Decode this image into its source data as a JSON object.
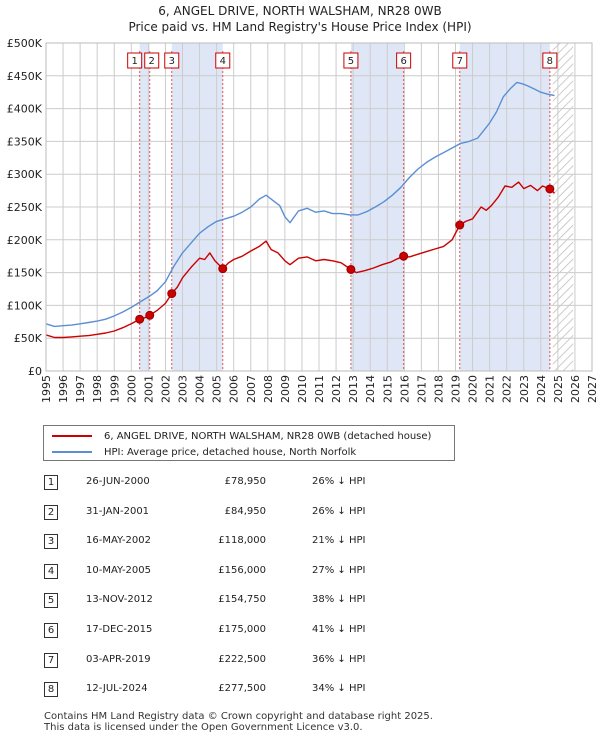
{
  "header": {
    "title": "6, ANGEL DRIVE, NORTH WALSHAM, NR28 0WB",
    "subtitle": "Price paid vs. HM Land Registry's House Price Index (HPI)"
  },
  "colors": {
    "red": "#cc0000",
    "blue": "#5b8fd4",
    "band": "#dfe7f7",
    "grid": "#cccccc"
  },
  "chart_data": {
    "type": "line",
    "title": "6, ANGEL DRIVE, NORTH WALSHAM, NR28 0WB",
    "xlim": [
      1995,
      2027
    ],
    "ylim": [
      0,
      500000
    ],
    "x_ticks": [
      1995,
      1996,
      1997,
      1998,
      1999,
      2000,
      2001,
      2002,
      2003,
      2004,
      2005,
      2006,
      2007,
      2008,
      2009,
      2010,
      2011,
      2012,
      2013,
      2014,
      2015,
      2016,
      2017,
      2018,
      2019,
      2020,
      2021,
      2022,
      2023,
      2024,
      2025,
      2026,
      2027
    ],
    "x_tick_labels": [
      "1995",
      "1996",
      "1997",
      "1998",
      "1999",
      "2000",
      "2001",
      "2002",
      "2003",
      "2004",
      "2005",
      "2006",
      "2007",
      "2008",
      "2009",
      "2010",
      "2011",
      "2012",
      "2013",
      "2014",
      "2015",
      "2016",
      "2017",
      "2018",
      "2019",
      "2020",
      "2021",
      "2022",
      "2023",
      "2024",
      "2025",
      "2026",
      "2027"
    ],
    "y_ticks": [
      0,
      50000,
      100000,
      150000,
      200000,
      250000,
      300000,
      350000,
      400000,
      450000,
      500000
    ],
    "y_tick_labels": [
      "£0",
      "£50K",
      "£100K",
      "£150K",
      "£200K",
      "£250K",
      "£300K",
      "£350K",
      "£400K",
      "£450K",
      "£500K"
    ],
    "forecast_start": 2024.7,
    "series": [
      {
        "name": "6, ANGEL DRIVE, NORTH WALSHAM, NR28 0WB (detached house)",
        "color": "#cc0000",
        "x": [
          1995.0,
          1995.5,
          1996.0,
          1996.5,
          1997.0,
          1997.5,
          1998.0,
          1998.5,
          1999.0,
          1999.5,
          2000.0,
          2000.49,
          2000.7,
          2001.08,
          2001.5,
          2002.0,
          2002.37,
          2002.7,
          2003.0,
          2003.5,
          2004.0,
          2004.3,
          2004.6,
          2004.9,
          2005.36,
          2005.7,
          2006.0,
          2006.5,
          2007.0,
          2007.5,
          2007.9,
          2008.2,
          2008.6,
          2009.0,
          2009.3,
          2009.8,
          2010.3,
          2010.8,
          2011.3,
          2011.8,
          2012.3,
          2012.87,
          2013.2,
          2013.7,
          2014.2,
          2014.7,
          2015.2,
          2015.6,
          2015.96,
          2016.3,
          2016.8,
          2017.3,
          2017.8,
          2018.3,
          2018.8,
          2019.25,
          2019.6,
          2020.0,
          2020.5,
          2020.8,
          2021.1,
          2021.5,
          2021.9,
          2022.3,
          2022.7,
          2023.0,
          2023.4,
          2023.8,
          2024.1,
          2024.53,
          2024.8
        ],
        "values": [
          55000,
          51000,
          51000,
          52000,
          53000,
          54000,
          56000,
          58000,
          61000,
          66000,
          72000,
          78950,
          80000,
          84950,
          92000,
          103000,
          118000,
          128000,
          142000,
          158000,
          172000,
          170000,
          180000,
          168000,
          156000,
          165000,
          170000,
          175000,
          183000,
          190000,
          198000,
          185000,
          180000,
          168000,
          162000,
          172000,
          174000,
          168000,
          170000,
          168000,
          165000,
          154750,
          150000,
          153000,
          157000,
          162000,
          166000,
          171000,
          175000,
          174000,
          178000,
          182000,
          186000,
          190000,
          200000,
          222500,
          228000,
          232000,
          250000,
          245000,
          252000,
          265000,
          282000,
          280000,
          288000,
          278000,
          283000,
          275000,
          282000,
          277500,
          271000
        ]
      },
      {
        "name": "HPI: Average price, detached house, North Norfolk",
        "color": "#5b8fd4",
        "x": [
          1995.0,
          1995.5,
          1996.0,
          1996.5,
          1997.0,
          1997.5,
          1998.0,
          1998.5,
          1999.0,
          1999.5,
          2000.0,
          2000.5,
          2001.0,
          2001.5,
          2002.0,
          2002.5,
          2003.0,
          2003.5,
          2004.0,
          2004.5,
          2005.0,
          2005.5,
          2006.0,
          2006.5,
          2007.0,
          2007.5,
          2007.9,
          2008.3,
          2008.7,
          2009.0,
          2009.3,
          2009.8,
          2010.3,
          2010.8,
          2011.3,
          2011.8,
          2012.3,
          2012.8,
          2013.3,
          2013.8,
          2014.3,
          2014.8,
          2015.3,
          2015.8,
          2016.3,
          2016.8,
          2017.3,
          2017.8,
          2018.3,
          2018.8,
          2019.3,
          2019.8,
          2020.3,
          2020.7,
          2021.0,
          2021.4,
          2021.8,
          2022.2,
          2022.6,
          2022.9,
          2023.2,
          2023.6,
          2024.0,
          2024.4,
          2024.8
        ],
        "values": [
          72000,
          68000,
          69000,
          70000,
          72000,
          74000,
          76000,
          79000,
          84000,
          90000,
          97000,
          105000,
          113000,
          122000,
          136000,
          160000,
          180000,
          195000,
          210000,
          220000,
          228000,
          232000,
          236000,
          242000,
          250000,
          262000,
          268000,
          260000,
          252000,
          235000,
          226000,
          244000,
          248000,
          242000,
          244000,
          240000,
          240000,
          238000,
          238000,
          243000,
          250000,
          258000,
          268000,
          280000,
          295000,
          308000,
          318000,
          326000,
          333000,
          340000,
          347000,
          350000,
          355000,
          368000,
          378000,
          395000,
          418000,
          430000,
          440000,
          438000,
          435000,
          430000,
          425000,
          422000,
          420000
        ]
      }
    ],
    "sales": [
      {
        "n": "1",
        "x": 2000.49,
        "y": 78950
      },
      {
        "n": "2",
        "x": 2001.08,
        "y": 84950
      },
      {
        "n": "3",
        "x": 2002.37,
        "y": 118000
      },
      {
        "n": "4",
        "x": 2005.36,
        "y": 156000
      },
      {
        "n": "5",
        "x": 2012.87,
        "y": 154750
      },
      {
        "n": "6",
        "x": 2015.96,
        "y": 175000
      },
      {
        "n": "7",
        "x": 2019.25,
        "y": 222500
      },
      {
        "n": "8",
        "x": 2024.53,
        "y": 277500
      }
    ],
    "bands": [
      [
        2000.49,
        2001.08
      ],
      [
        2002.37,
        2005.36
      ],
      [
        2012.87,
        2015.96
      ],
      [
        2019.25,
        2024.53
      ]
    ]
  },
  "legend": {
    "red_label": "6, ANGEL DRIVE, NORTH WALSHAM, NR28 0WB (detached house)",
    "blue_label": "HPI: Average price, detached house, North Norfolk"
  },
  "transactions": [
    {
      "n": "1",
      "date": "26-JUN-2000",
      "price": "£78,950",
      "hpi": "26% ↓ HPI"
    },
    {
      "n": "2",
      "date": "31-JAN-2001",
      "price": "£84,950",
      "hpi": "26% ↓ HPI"
    },
    {
      "n": "3",
      "date": "16-MAY-2002",
      "price": "£118,000",
      "hpi": "21% ↓ HPI"
    },
    {
      "n": "4",
      "date": "10-MAY-2005",
      "price": "£156,000",
      "hpi": "27% ↓ HPI"
    },
    {
      "n": "5",
      "date": "13-NOV-2012",
      "price": "£154,750",
      "hpi": "38% ↓ HPI"
    },
    {
      "n": "6",
      "date": "17-DEC-2015",
      "price": "£175,000",
      "hpi": "41% ↓ HPI"
    },
    {
      "n": "7",
      "date": "03-APR-2019",
      "price": "£222,500",
      "hpi": "36% ↓ HPI"
    },
    {
      "n": "8",
      "date": "12-JUL-2024",
      "price": "£277,500",
      "hpi": "34% ↓ HPI"
    }
  ],
  "footer": {
    "line1": "Contains HM Land Registry data © Crown copyright and database right 2025.",
    "line2": "This data is licensed under the Open Government Licence v3.0."
  }
}
